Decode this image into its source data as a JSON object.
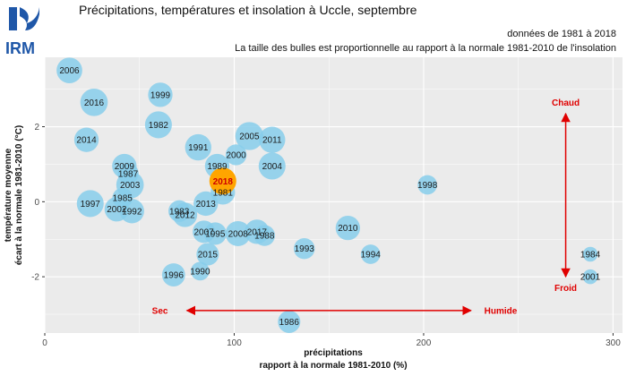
{
  "header": {
    "logo_text": "IRM",
    "title": "Précipitations, températures et insolation à Uccle, septembre",
    "period": "données de 1981 à 2018",
    "note": "La taille des bulles est proportionnelle au rapport à la normale 1981-2010 de l'insolation"
  },
  "chart_data": {
    "type": "scatter",
    "xlabel_line1": "précipitations",
    "xlabel_line2": "rapport à la normale 1981-2010 (%)",
    "ylabel_line1": "température moyenne",
    "ylabel_line2": "écart à la normale 1981-2010 (°C)",
    "xlim": [
      0,
      305
    ],
    "ylim": [
      -3.5,
      3.85
    ],
    "xticks": [
      0,
      100,
      200,
      300
    ],
    "yticks": [
      -2,
      0,
      2
    ],
    "grid": true,
    "colors": {
      "bubble": "#87ceeb",
      "highlight": "#ffa500",
      "highlight_text": "#cc0000",
      "annotation": "#e00000",
      "panel": "#ebebeb",
      "grid": "#ffffff"
    },
    "points": [
      {
        "year": "2006",
        "x": 13,
        "y": 3.5,
        "size": 1.05
      },
      {
        "year": "1999",
        "x": 61,
        "y": 2.85,
        "size": 0.95
      },
      {
        "year": "2016",
        "x": 26,
        "y": 2.65,
        "size": 1.2
      },
      {
        "year": "1982",
        "x": 60,
        "y": 2.05,
        "size": 1.15
      },
      {
        "year": "2014",
        "x": 22,
        "y": 1.65,
        "size": 0.95
      },
      {
        "year": "2005",
        "x": 108,
        "y": 1.75,
        "size": 1.25
      },
      {
        "year": "2011",
        "x": 120,
        "y": 1.65,
        "size": 1.1
      },
      {
        "year": "1991",
        "x": 81,
        "y": 1.45,
        "size": 1.1
      },
      {
        "year": "2000",
        "x": 101,
        "y": 1.25,
        "size": 0.7
      },
      {
        "year": "2004",
        "x": 120,
        "y": 0.95,
        "size": 1.15
      },
      {
        "year": "1989",
        "x": 91,
        "y": 0.95,
        "size": 0.95
      },
      {
        "year": "2009",
        "x": 42,
        "y": 0.95,
        "size": 0.95
      },
      {
        "year": "1987",
        "x": 44,
        "y": 0.75,
        "size": 0.7
      },
      {
        "year": "2003",
        "x": 45,
        "y": 0.45,
        "size": 1.2
      },
      {
        "year": "1998",
        "x": 202,
        "y": 0.45,
        "size": 0.6
      },
      {
        "year": "1981",
        "x": 94,
        "y": 0.25,
        "size": 0.95
      },
      {
        "year": "1985",
        "x": 41,
        "y": 0.1,
        "size": 0.65
      },
      {
        "year": "1997",
        "x": 24,
        "y": -0.05,
        "size": 1.15
      },
      {
        "year": "2013",
        "x": 85,
        "y": -0.05,
        "size": 0.95
      },
      {
        "year": "2002",
        "x": 38,
        "y": -0.2,
        "size": 0.95
      },
      {
        "year": "1992",
        "x": 46,
        "y": -0.25,
        "size": 0.95
      },
      {
        "year": "1983",
        "x": 71,
        "y": -0.25,
        "size": 0.75
      },
      {
        "year": "2012",
        "x": 74,
        "y": -0.35,
        "size": 0.95
      },
      {
        "year": "2007",
        "x": 84,
        "y": -0.8,
        "size": 0.8
      },
      {
        "year": "1995",
        "x": 90,
        "y": -0.85,
        "size": 0.8
      },
      {
        "year": "2008",
        "x": 102,
        "y": -0.85,
        "size": 1.0
      },
      {
        "year": "2017",
        "x": 112,
        "y": -0.8,
        "size": 0.95
      },
      {
        "year": "1988",
        "x": 116,
        "y": -0.9,
        "size": 0.7
      },
      {
        "year": "2010",
        "x": 160,
        "y": -0.7,
        "size": 0.95
      },
      {
        "year": "1993",
        "x": 137,
        "y": -1.25,
        "size": 0.7
      },
      {
        "year": "1994",
        "x": 172,
        "y": -1.4,
        "size": 0.6
      },
      {
        "year": "2015",
        "x": 86,
        "y": -1.4,
        "size": 0.8
      },
      {
        "year": "1984",
        "x": 288,
        "y": -1.4,
        "size": 0.35
      },
      {
        "year": "1990",
        "x": 82,
        "y": -1.85,
        "size": 0.55
      },
      {
        "year": "1996",
        "x": 68,
        "y": -1.95,
        "size": 0.85
      },
      {
        "year": "2001",
        "x": 288,
        "y": -2.0,
        "size": 0.35
      },
      {
        "year": "1986",
        "x": 129,
        "y": -3.2,
        "size": 0.8
      },
      {
        "year": "2018",
        "x": 94,
        "y": 0.55,
        "size": 1.15,
        "highlight": true
      }
    ],
    "annotations": {
      "sec": "Sec",
      "humide": "Humide",
      "chaud": "Chaud",
      "froid": "Froid",
      "h_arrow": {
        "x1": 75,
        "x2": 225,
        "y": -2.9,
        "label_left_x": 65,
        "label_right_x": 232
      },
      "v_arrow": {
        "x": 275,
        "y1": 2.35,
        "y2": -2.0,
        "label_top_y": 2.65,
        "label_bottom_y": -2.3
      }
    }
  }
}
